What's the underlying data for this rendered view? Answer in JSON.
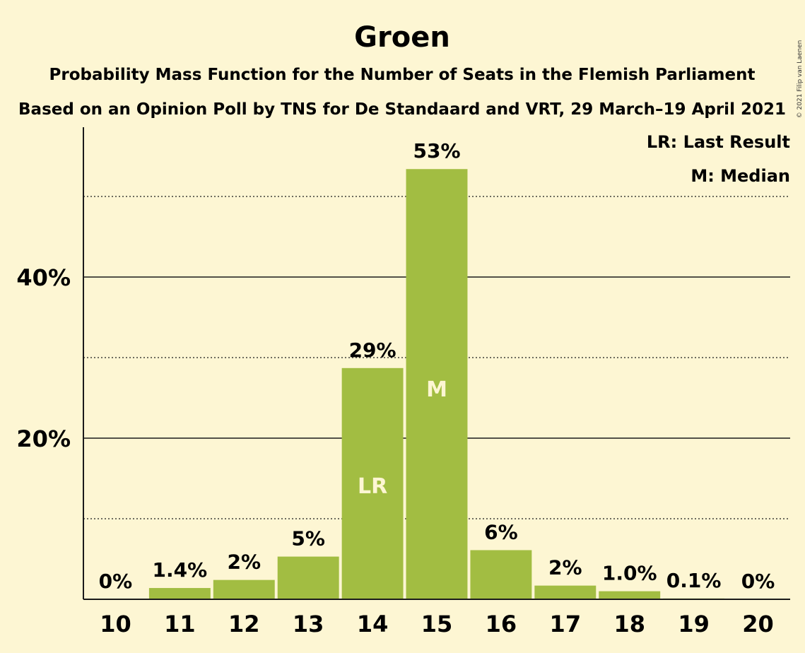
{
  "copyright": "© 2021 Filip van Laenen",
  "chart_data": {
    "type": "bar",
    "title": "Groen",
    "subtitle": "Probability Mass Function for the Number of Seats in the Flemish Parliament",
    "subtitle2": "Based on an Opinion Poll by TNS for De Standaard and VRT, 29 March–19 April 2021",
    "xlabel": "",
    "ylabel": "",
    "categories": [
      "10",
      "11",
      "12",
      "13",
      "14",
      "15",
      "16",
      "17",
      "18",
      "19",
      "20"
    ],
    "values": [
      0,
      1.4,
      2.4,
      5.3,
      28.7,
      53.4,
      6.1,
      1.7,
      1.0,
      0.1,
      0
    ],
    "value_labels": [
      "0%",
      "1.4%",
      "2%",
      "5%",
      "29%",
      "53%",
      "6%",
      "2%",
      "1.0%",
      "0.1%",
      "0%"
    ],
    "bar_markers": {
      "14": "LR",
      "15": "M"
    },
    "ylim": [
      0,
      58
    ],
    "y_ticks": [
      20,
      40
    ],
    "y_tick_labels": [
      "20%",
      "40%"
    ],
    "y_minor_gridlines": [
      10,
      30,
      50
    ],
    "grid": true,
    "legend": [
      "LR: Last Result",
      "M: Median"
    ],
    "legend_position": "top-right",
    "colors": {
      "bar": "#a2bd42",
      "background": "#fdf6d3",
      "grid": "#1a1a1a"
    }
  }
}
